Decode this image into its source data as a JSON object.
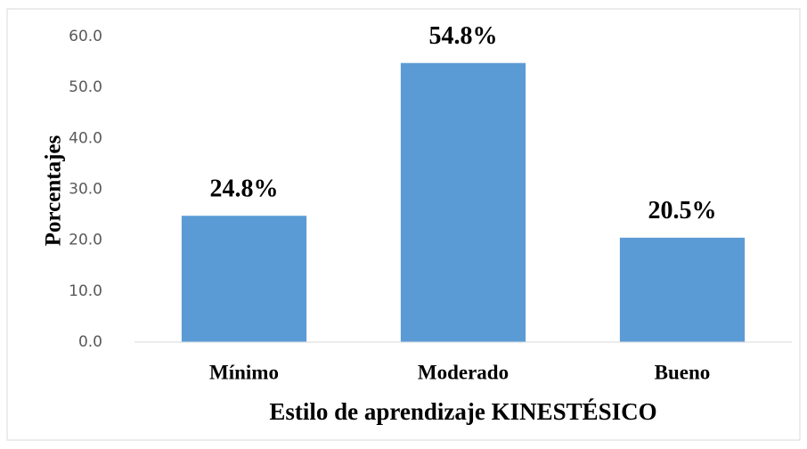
{
  "chart_data": {
    "type": "bar",
    "categories": [
      "Mínimo",
      "Moderado",
      "Bueno"
    ],
    "values": [
      24.8,
      54.8,
      20.5
    ],
    "value_labels": [
      "24.8%",
      "54.8%",
      "20.5%"
    ],
    "color": "#5b9bd5",
    "xlabel": "Estilo de aprendizaje KINESTÉSICO",
    "ylabel": "Porcentajes",
    "ylim": [
      0,
      60
    ],
    "yticks": [
      {
        "value": 0,
        "label": "0.0"
      },
      {
        "value": 10,
        "label": "10.0"
      },
      {
        "value": 20,
        "label": "20.0"
      },
      {
        "value": 30,
        "label": "30.0"
      },
      {
        "value": 40,
        "label": "40.0"
      },
      {
        "value": 50,
        "label": "50.0"
      },
      {
        "value": 60,
        "label": "60.0"
      }
    ],
    "grid": false
  }
}
